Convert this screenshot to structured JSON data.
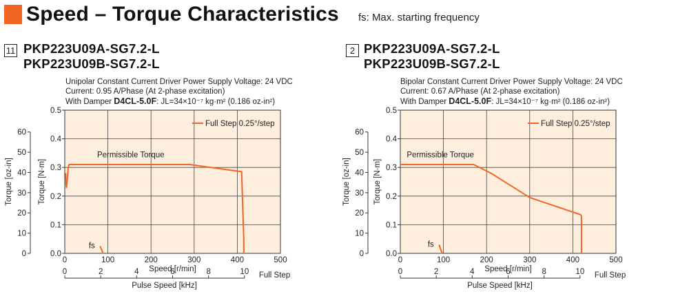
{
  "header": {
    "title": "Speed – Torque Characteristics",
    "note": "fs: Max. starting frequency",
    "accent": "#f26522"
  },
  "charts": [
    {
      "index_label": "11",
      "model_a": "PKP223U09A-SG7.2-L",
      "model_b": "PKP223U09B-SG7.2-L",
      "driver_line": "Unipolar Constant Current Driver  Power Supply Voltage: 24 VDC",
      "current_line": "Current: 0.95 A/Phase (At 2-phase excitation)",
      "damper_prefix": "With Damper ",
      "damper_model": "D4CL-5.0F",
      "damper_suffix": ": JL=34×10⁻⁷ kg·m² (0.186 oz-in²)"
    },
    {
      "index_label": "2",
      "model_a": "PKP223U09A-SG7.2-L",
      "model_b": "PKP223U09B-SG7.2-L",
      "driver_line": "Bipolar Constant Current Driver  Power Supply Voltage: 24 VDC",
      "current_line": "Current: 0.67 A/Phase (At 2-phase excitation)",
      "damper_prefix": "With Damper ",
      "damper_model": "D4CL-5.0F",
      "damper_suffix": ": JL=34×10⁻⁷ kg·m² (0.186 oz-in²)"
    }
  ],
  "chart_data": [
    {
      "type": "line",
      "xlabel": "Speed [r/min]",
      "x2label": "Pulse Speed [kHz]",
      "x2_end_label": "Full Step",
      "ylabel": "Torque [N·m]",
      "y2label": "Torque [oz-in]",
      "xlim": [
        0,
        500
      ],
      "ylim": [
        0,
        0.5
      ],
      "x_ticks": [
        0,
        100,
        200,
        300,
        400,
        500
      ],
      "y_ticks": [
        0,
        0.1,
        0.2,
        0.3,
        0.4,
        0.5
      ],
      "x2_ticks": [
        0,
        2,
        4,
        6,
        8,
        10
      ],
      "y2_ticks": [
        0,
        10,
        20,
        30,
        40,
        50,
        60
      ],
      "grid": true,
      "legend": "top-right",
      "region_label": "Permissible Torque",
      "fs_label": "fs",
      "series": [
        {
          "name": "Full Step 0.25°/step",
          "color": "#f26522",
          "x": [
            415,
            415,
            410,
            290,
            10,
            8,
            6,
            4,
            3,
            2
          ],
          "y": [
            0,
            0.05,
            0.285,
            0.31,
            0.31,
            0.3,
            0.26,
            0.23,
            0.24,
            0.28
          ]
        }
      ],
      "fs_series": {
        "color": "#f26522",
        "x": [
          82,
          89
        ],
        "y": [
          0.025,
          0.0
        ]
      }
    },
    {
      "type": "line",
      "xlabel": "Speed [r/min]",
      "x2label": "Pulse Speed [kHz]",
      "x2_end_label": "Full Step",
      "ylabel": "Torque [N·m]",
      "y2label": "Torque [oz-in]",
      "xlim": [
        0,
        500
      ],
      "ylim": [
        0,
        0.5
      ],
      "x_ticks": [
        0,
        100,
        200,
        300,
        400,
        500
      ],
      "y_ticks": [
        0,
        0.1,
        0.2,
        0.3,
        0.4,
        0.5
      ],
      "x2_ticks": [
        0,
        2,
        4,
        6,
        8,
        10
      ],
      "y2_ticks": [
        0,
        10,
        20,
        30,
        40,
        50,
        60
      ],
      "grid": true,
      "legend": "top-right",
      "region_label": "Permissible Torque",
      "fs_label": "fs",
      "series": [
        {
          "name": "Full Step 0.25°/step",
          "color": "#f26522",
          "x": [
            420,
            420,
            418,
            300,
            210,
            170,
            0
          ],
          "y": [
            0,
            0.13,
            0.135,
            0.195,
            0.28,
            0.31,
            0.31
          ]
        }
      ],
      "fs_series": {
        "color": "#f26522",
        "x": [
          90,
          97
        ],
        "y": [
          0.03,
          0.0
        ]
      }
    }
  ]
}
